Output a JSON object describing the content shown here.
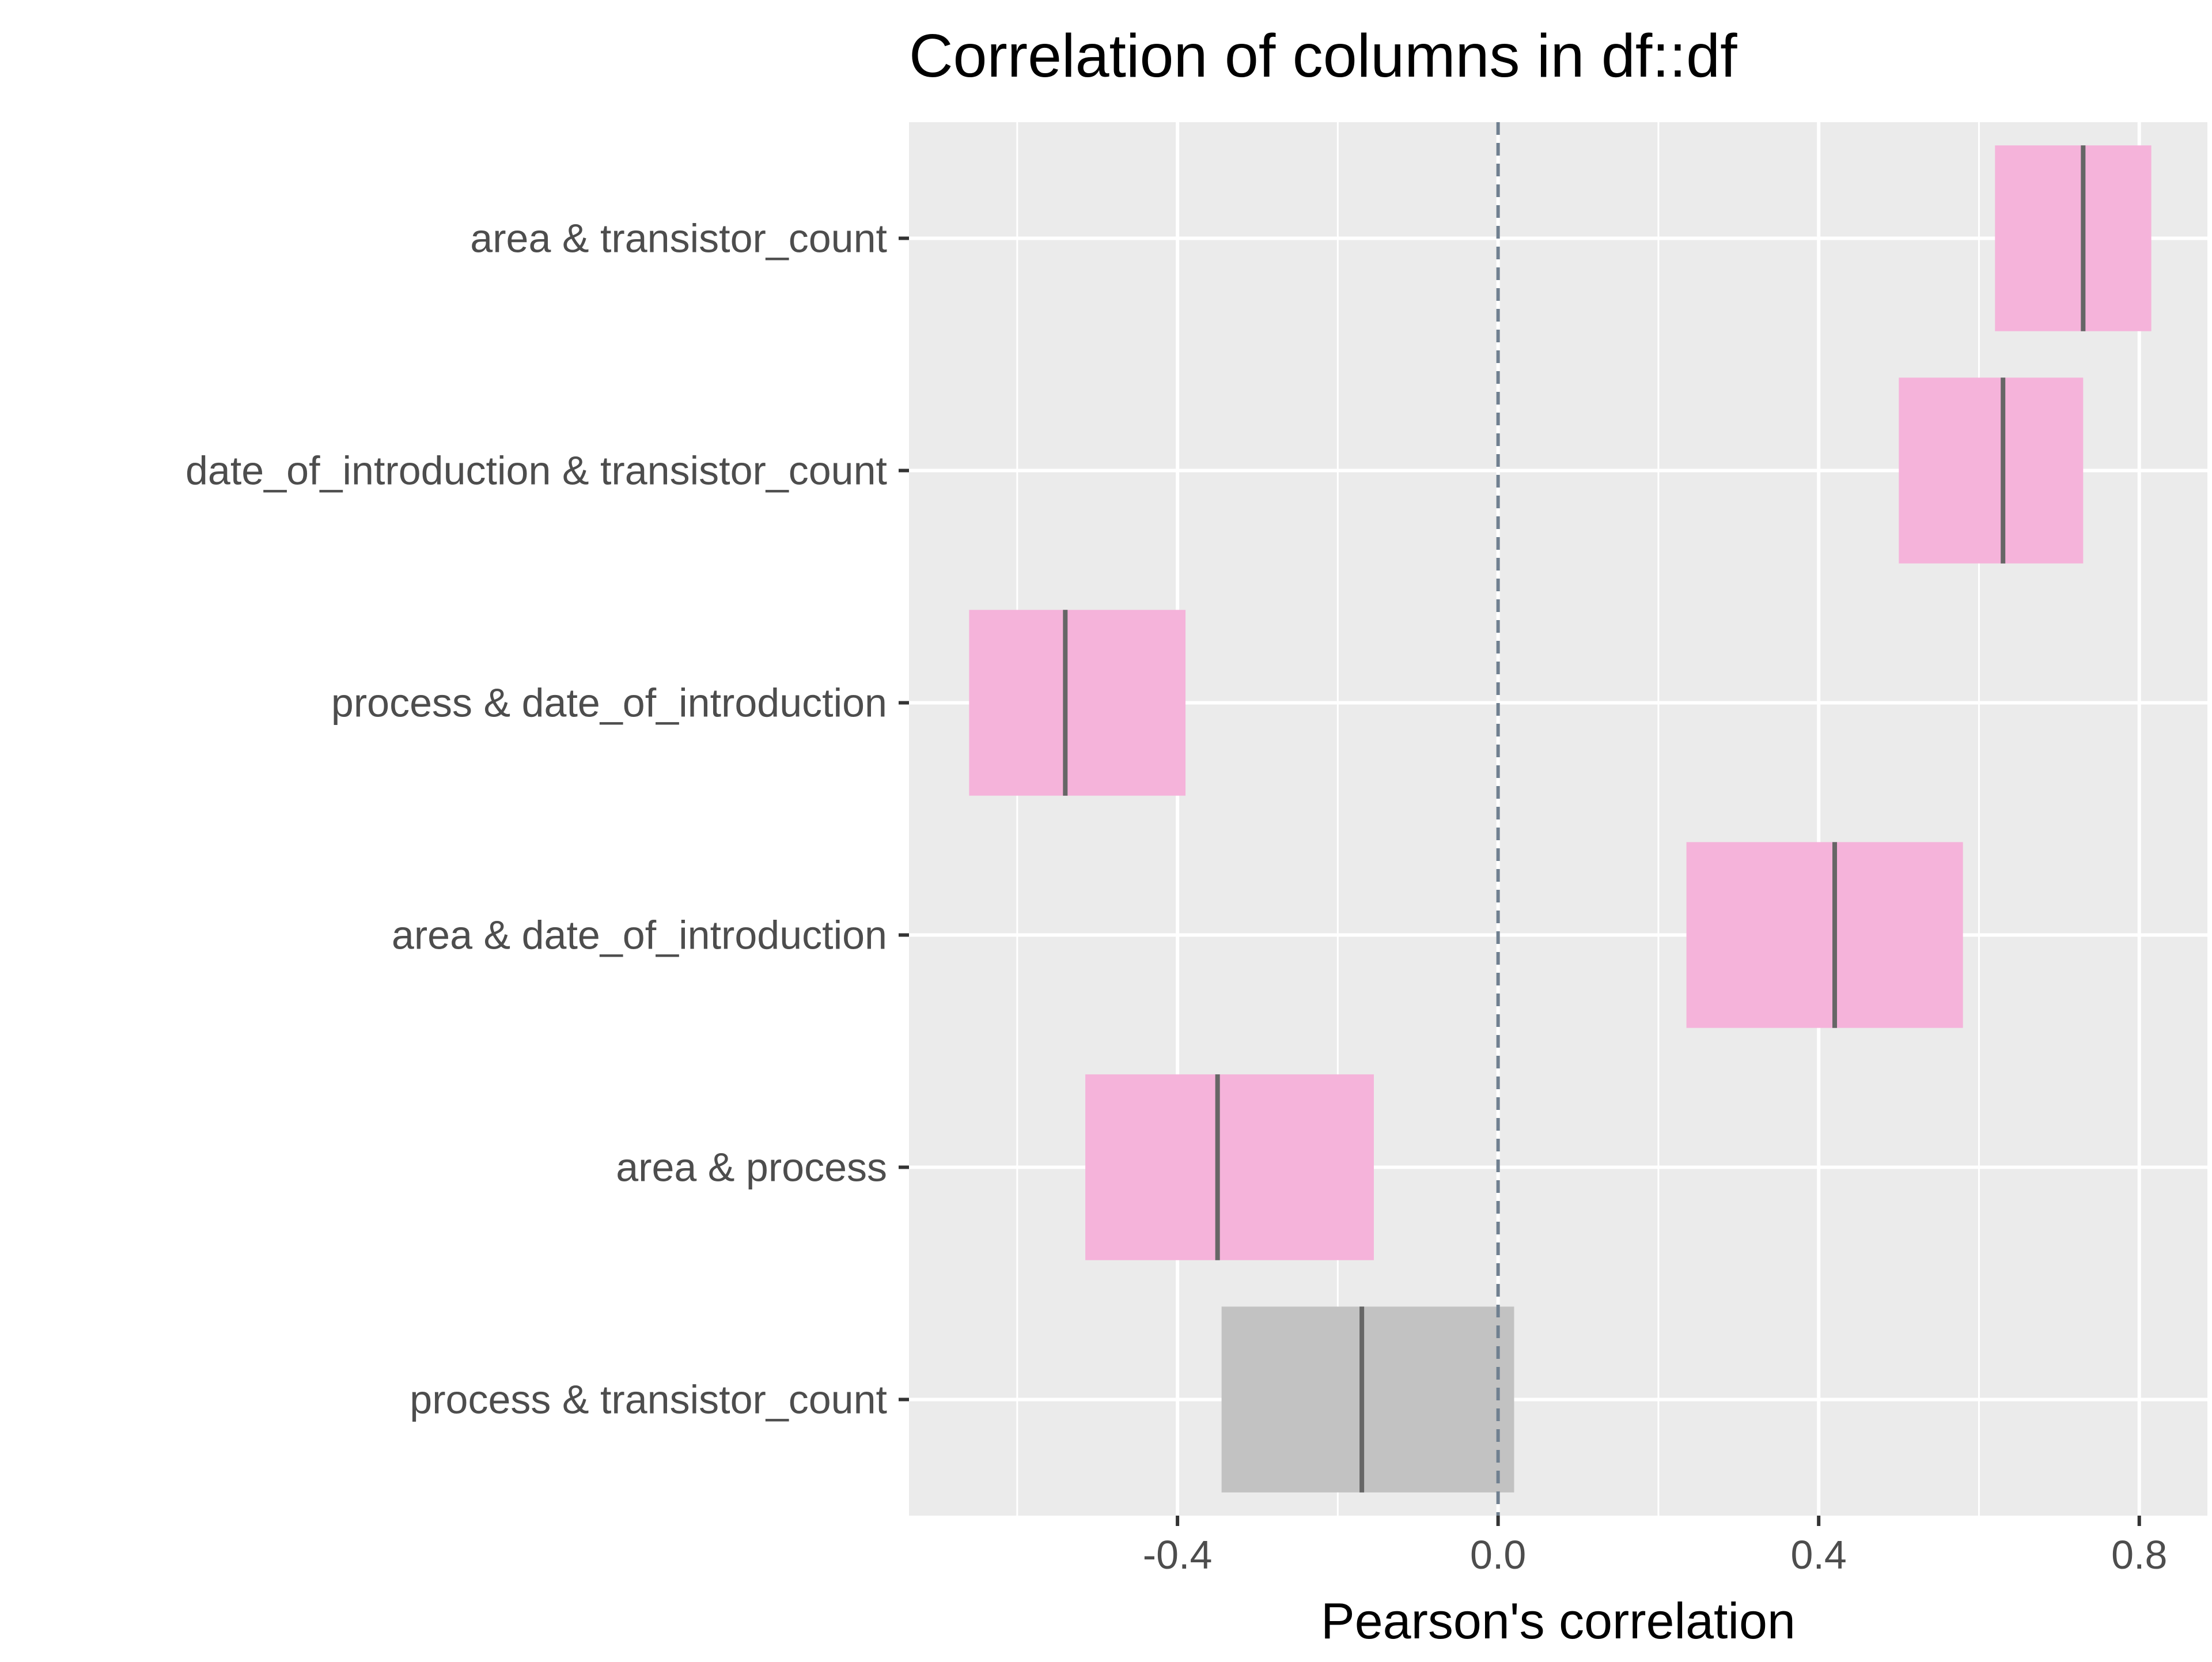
{
  "chart_data": {
    "type": "interval",
    "title": "Correlation of columns in df::df",
    "xlabel": "Pearson's correlation",
    "ylabel": "",
    "xlim": [
      -0.735,
      0.885
    ],
    "xticks": [
      -0.4,
      0.0,
      0.4,
      0.8
    ],
    "xtick_labels": [
      "-0.4",
      "0.0",
      "0.4",
      "0.8"
    ],
    "reference_line": 0.0,
    "grid": true,
    "legend": "none",
    "colors": {
      "panel": "#EBEBEB",
      "grid": "#FFFFFF",
      "significant": "#F5B3DA",
      "not_significant": "#C2C2C2",
      "estimate": "#666666",
      "reference": "#708090",
      "tick": "#333333"
    },
    "rows": [
      {
        "label": "area & transistor_count",
        "estimate": 0.73,
        "low": 0.62,
        "high": 0.815,
        "significant": true
      },
      {
        "label": "date_of_introduction & transistor_count",
        "estimate": 0.63,
        "low": 0.5,
        "high": 0.73,
        "significant": true
      },
      {
        "label": "process & date_of_introduction",
        "estimate": -0.54,
        "low": -0.66,
        "high": -0.39,
        "significant": true
      },
      {
        "label": "area & date_of_introduction",
        "estimate": 0.42,
        "low": 0.235,
        "high": 0.58,
        "significant": true
      },
      {
        "label": "area & process",
        "estimate": -0.35,
        "low": -0.515,
        "high": -0.155,
        "significant": true
      },
      {
        "label": "process & transistor_count",
        "estimate": -0.17,
        "low": -0.345,
        "high": 0.02,
        "significant": false
      }
    ]
  }
}
